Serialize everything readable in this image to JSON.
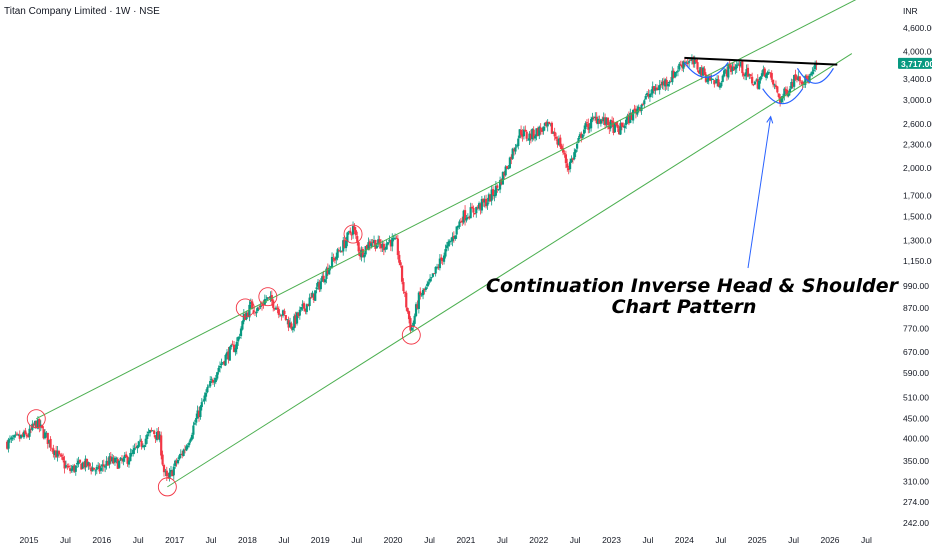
{
  "header": {
    "title": "Titan Company Limited · 1W · NSE",
    "currency": "INR"
  },
  "price_badge": {
    "value": "3,717.00",
    "color": "#089981"
  },
  "colors": {
    "up": "#089981",
    "down": "#f23645",
    "channel": "#4caf50",
    "neckline": "#000000",
    "shoulders": "#2962ff",
    "arrow": "#2962ff",
    "circles": "#f23645"
  },
  "annotation": {
    "line1": "Continuation Inverse Head & Shoulder",
    "line2": "Chart Pattern"
  },
  "chart_data": {
    "type": "candlestick",
    "interval": "1W",
    "y_scale": "log",
    "y_ticks": [
      {
        "label": "4,600.00",
        "value": 4600
      },
      {
        "label": "4,000.00",
        "value": 4000
      },
      {
        "label": "3,400.00",
        "value": 3400
      },
      {
        "label": "3,000.00",
        "value": 3000
      },
      {
        "label": "2,600.00",
        "value": 2600
      },
      {
        "label": "2,300.00",
        "value": 2300
      },
      {
        "label": "2,000.00",
        "value": 2000
      },
      {
        "label": "1,700.00",
        "value": 1700
      },
      {
        "label": "1,500.00",
        "value": 1500
      },
      {
        "label": "1,300.00",
        "value": 1300
      },
      {
        "label": "1,150.00",
        "value": 1150
      },
      {
        "label": "990.00",
        "value": 990
      },
      {
        "label": "870.00",
        "value": 870
      },
      {
        "label": "770.00",
        "value": 770
      },
      {
        "label": "670.00",
        "value": 670
      },
      {
        "label": "590.00",
        "value": 590
      },
      {
        "label": "510.00",
        "value": 510
      },
      {
        "label": "450.00",
        "value": 450
      },
      {
        "label": "400.00",
        "value": 400
      },
      {
        "label": "350.00",
        "value": 350
      },
      {
        "label": "310.00",
        "value": 310
      },
      {
        "label": "274.00",
        "value": 274
      },
      {
        "label": "242.00",
        "value": 242
      }
    ],
    "x_ticks": [
      {
        "label": "2015",
        "t": 2015.0
      },
      {
        "label": "Jul",
        "t": 2015.5
      },
      {
        "label": "2016",
        "t": 2016.0
      },
      {
        "label": "Jul",
        "t": 2016.5
      },
      {
        "label": "2017",
        "t": 2017.0
      },
      {
        "label": "Jul",
        "t": 2017.5
      },
      {
        "label": "2018",
        "t": 2018.0
      },
      {
        "label": "Jul",
        "t": 2018.5
      },
      {
        "label": "2019",
        "t": 2019.0
      },
      {
        "label": "Jul",
        "t": 2019.5
      },
      {
        "label": "2020",
        "t": 2020.0
      },
      {
        "label": "Jul",
        "t": 2020.5
      },
      {
        "label": "2021",
        "t": 2021.0
      },
      {
        "label": "Jul",
        "t": 2021.5
      },
      {
        "label": "2022",
        "t": 2022.0
      },
      {
        "label": "Jul",
        "t": 2022.5
      },
      {
        "label": "2023",
        "t": 2023.0
      },
      {
        "label": "Jul",
        "t": 2023.5
      },
      {
        "label": "2024",
        "t": 2024.0
      },
      {
        "label": "Jul",
        "t": 2024.5
      },
      {
        "label": "2025",
        "t": 2025.0
      },
      {
        "label": "Jul",
        "t": 2025.5
      },
      {
        "label": "2026",
        "t": 2026.0
      },
      {
        "label": "Jul",
        "t": 2026.5
      }
    ],
    "price_path": [
      [
        2014.7,
        390
      ],
      [
        2015.0,
        410
      ],
      [
        2015.1,
        440
      ],
      [
        2015.25,
        400
      ],
      [
        2015.4,
        360
      ],
      [
        2015.55,
        330
      ],
      [
        2015.75,
        345
      ],
      [
        2015.95,
        330
      ],
      [
        2016.1,
        350
      ],
      [
        2016.25,
        345
      ],
      [
        2016.4,
        360
      ],
      [
        2016.55,
        390
      ],
      [
        2016.7,
        420
      ],
      [
        2016.8,
        395
      ],
      [
        2016.85,
        330
      ],
      [
        2016.9,
        310
      ],
      [
        2017.0,
        340
      ],
      [
        2017.15,
        380
      ],
      [
        2017.3,
        450
      ],
      [
        2017.45,
        530
      ],
      [
        2017.6,
        610
      ],
      [
        2017.7,
        650
      ],
      [
        2017.85,
        700
      ],
      [
        2017.95,
        820
      ],
      [
        2018.05,
        880
      ],
      [
        2018.15,
        860
      ],
      [
        2018.25,
        920
      ],
      [
        2018.35,
        900
      ],
      [
        2018.5,
        830
      ],
      [
        2018.6,
        780
      ],
      [
        2018.75,
        860
      ],
      [
        2018.9,
        930
      ],
      [
        2019.1,
        1100
      ],
      [
        2019.3,
        1250
      ],
      [
        2019.45,
        1400
      ],
      [
        2019.55,
        1200
      ],
      [
        2019.7,
        1300
      ],
      [
        2019.85,
        1250
      ],
      [
        2019.95,
        1300
      ],
      [
        2020.05,
        1270
      ],
      [
        2020.15,
        950
      ],
      [
        2020.25,
        760
      ],
      [
        2020.35,
        920
      ],
      [
        2020.5,
        1000
      ],
      [
        2020.65,
        1150
      ],
      [
        2020.8,
        1300
      ],
      [
        2020.95,
        1500
      ],
      [
        2021.1,
        1550
      ],
      [
        2021.3,
        1650
      ],
      [
        2021.45,
        1800
      ],
      [
        2021.6,
        2100
      ],
      [
        2021.75,
        2500
      ],
      [
        2021.85,
        2400
      ],
      [
        2022.0,
        2500
      ],
      [
        2022.15,
        2550
      ],
      [
        2022.3,
        2300
      ],
      [
        2022.4,
        2000
      ],
      [
        2022.5,
        2200
      ],
      [
        2022.6,
        2500
      ],
      [
        2022.8,
        2700
      ],
      [
        2022.95,
        2600
      ],
      [
        2023.1,
        2500
      ],
      [
        2023.25,
        2700
      ],
      [
        2023.45,
        3000
      ],
      [
        2023.6,
        3200
      ],
      [
        2023.8,
        3400
      ],
      [
        2024.0,
        3800
      ],
      [
        2024.15,
        3700
      ],
      [
        2024.3,
        3450
      ],
      [
        2024.45,
        3300
      ],
      [
        2024.6,
        3600
      ],
      [
        2024.75,
        3700
      ],
      [
        2024.9,
        3400
      ],
      [
        2025.0,
        3300
      ],
      [
        2025.12,
        3600
      ],
      [
        2025.22,
        3300
      ],
      [
        2025.32,
        3000
      ],
      [
        2025.42,
        3200
      ],
      [
        2025.55,
        3500
      ],
      [
        2025.65,
        3350
      ],
      [
        2025.75,
        3450
      ],
      [
        2025.82,
        3717
      ]
    ],
    "last_price": 3717,
    "channel_upper": [
      [
        2015.1,
        450
      ],
      [
        2026.4,
        5500
      ]
    ],
    "channel_lower": [
      [
        2016.9,
        300
      ],
      [
        2026.3,
        3950
      ]
    ],
    "neckline": [
      [
        2024.0,
        3850
      ],
      [
        2026.1,
        3700
      ]
    ],
    "highlight_points": [
      [
        2015.1,
        450
      ],
      [
        2016.9,
        300
      ],
      [
        2017.97,
        870
      ],
      [
        2018.28,
        930
      ],
      [
        2019.45,
        1350
      ],
      [
        2020.25,
        740
      ]
    ],
    "pattern_shoulders": [
      [
        2024.3,
        3450
      ],
      [
        2025.35,
        2950
      ],
      [
        2025.8,
        3330
      ]
    ]
  }
}
